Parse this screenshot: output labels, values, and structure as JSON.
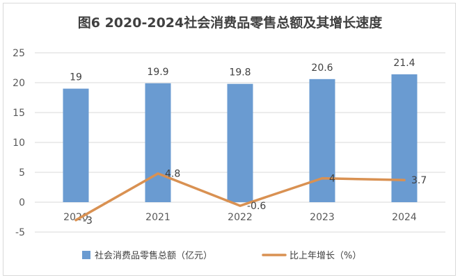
{
  "chart_data": {
    "type": "bar+line",
    "title": "图6 2020-2024社会消费品零售总额及其增长速度",
    "categories": [
      "2020",
      "2021",
      "2022",
      "2023",
      "2024"
    ],
    "series": [
      {
        "name": "社会消费品零售总额（亿元）",
        "type": "bar",
        "values": [
          19,
          19.9,
          19.8,
          20.6,
          21.4
        ],
        "color": "#6a9bd1"
      },
      {
        "name": "比上年增长（%）",
        "type": "line",
        "values": [
          -3,
          4.8,
          -0.6,
          4,
          3.7
        ],
        "color": "#d99152"
      }
    ],
    "value_labels": {
      "bars": [
        "19",
        "19.9",
        "19.8",
        "20.6",
        "21.4"
      ],
      "line": [
        "-3",
        "4.8",
        "-0.6",
        "4",
        "3.7"
      ]
    },
    "ylim": [
      -5,
      25
    ],
    "yticks": [
      25,
      20,
      15,
      10,
      5,
      0,
      -5
    ],
    "grid": true,
    "legend": "bottom"
  }
}
